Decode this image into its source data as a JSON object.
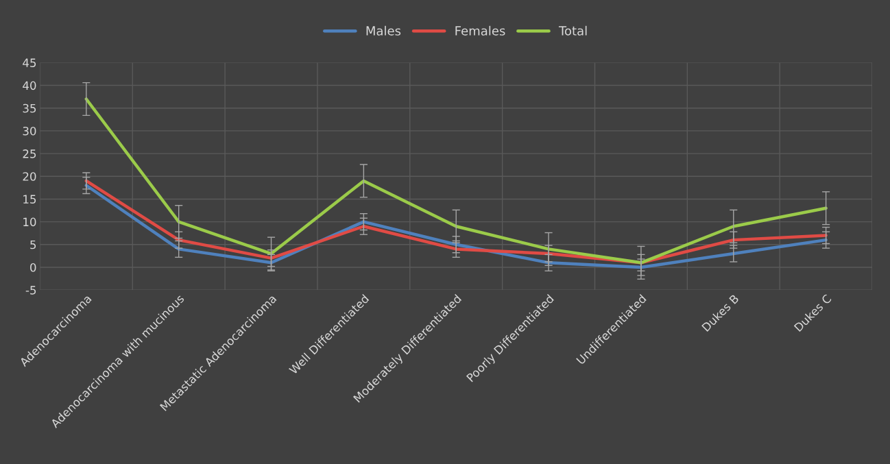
{
  "chart_data": {
    "type": "line",
    "categories": [
      "Adenocarcinoma",
      "Adenocarcinoma with mucinous",
      "Metastatic Adenocarcinoma",
      "Well Differentiated",
      "Moderately Differentiated",
      "Poorly Differentiated",
      "Undifferentiated",
      "Dukes B",
      "Dukes C"
    ],
    "series": [
      {
        "name": "Males",
        "color": "#4f81bd",
        "values": [
          18,
          4,
          1,
          10,
          5,
          1,
          0,
          3,
          6
        ],
        "errors": [
          1.8,
          1.8,
          1.8,
          1.8,
          1.8,
          1.8,
          1.8,
          1.8,
          1.8
        ]
      },
      {
        "name": "Females",
        "color": "#e04b45",
        "values": [
          19,
          6,
          2,
          9,
          4,
          3,
          1,
          6,
          7
        ],
        "errors": [
          1.8,
          1.8,
          1.8,
          1.8,
          1.8,
          1.8,
          1.8,
          1.8,
          1.8
        ]
      },
      {
        "name": "Total",
        "color": "#9bcb4a",
        "values": [
          37,
          10,
          3,
          19,
          9,
          4,
          1,
          9,
          13
        ],
        "errors": [
          3.6,
          3.6,
          3.6,
          3.6,
          3.6,
          3.6,
          3.6,
          3.6,
          3.6
        ]
      }
    ],
    "ylim": [
      -5,
      45
    ],
    "yticks": [
      -5,
      0,
      5,
      10,
      15,
      20,
      25,
      30,
      35,
      40,
      45
    ],
    "grid": true,
    "legend": "top",
    "marker": "none",
    "line_style": "solid"
  }
}
